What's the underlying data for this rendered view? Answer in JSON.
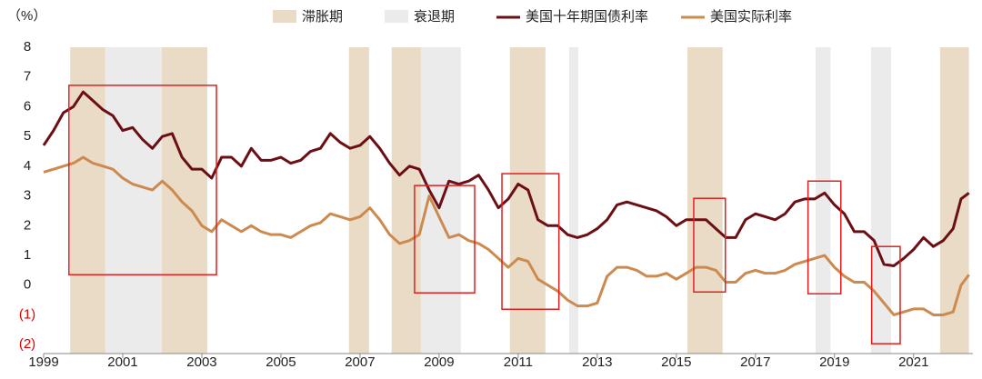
{
  "chart_data": {
    "type": "line",
    "y_unit_label": "（%）",
    "x": [
      1999,
      1999.25,
      1999.5,
      1999.75,
      2000,
      2000.25,
      2000.5,
      2000.75,
      2001,
      2001.25,
      2001.5,
      2001.75,
      2002,
      2002.25,
      2002.5,
      2002.75,
      2003,
      2003.25,
      2003.5,
      2003.75,
      2004,
      2004.25,
      2004.5,
      2004.75,
      2005,
      2005.25,
      2005.5,
      2005.75,
      2006,
      2006.25,
      2006.5,
      2006.75,
      2007,
      2007.25,
      2007.5,
      2007.75,
      2008,
      2008.25,
      2008.5,
      2008.75,
      2009,
      2009.25,
      2009.5,
      2009.75,
      2010,
      2010.25,
      2010.5,
      2010.75,
      2011,
      2011.25,
      2011.5,
      2011.75,
      2012,
      2012.25,
      2012.5,
      2012.75,
      2013,
      2013.25,
      2013.5,
      2013.75,
      2014,
      2014.25,
      2014.5,
      2014.75,
      2015,
      2015.25,
      2015.5,
      2015.75,
      2016,
      2016.25,
      2016.5,
      2016.75,
      2017,
      2017.25,
      2017.5,
      2017.75,
      2018,
      2018.25,
      2018.5,
      2018.75,
      2019,
      2019.25,
      2019.5,
      2019.75,
      2020,
      2020.25,
      2020.5,
      2020.75,
      2021,
      2021.25,
      2021.5,
      2021.75,
      2022,
      2022.2,
      2022.4
    ],
    "series": [
      {
        "name": "美国十年期国债利率",
        "color": "#6b0f14",
        "values": [
          4.7,
          5.2,
          5.8,
          6.0,
          6.5,
          6.2,
          5.9,
          5.7,
          5.2,
          5.3,
          4.9,
          4.6,
          5.0,
          5.1,
          4.3,
          3.9,
          3.9,
          3.6,
          4.3,
          4.3,
          4.0,
          4.6,
          4.2,
          4.2,
          4.3,
          4.1,
          4.2,
          4.5,
          4.6,
          5.1,
          4.8,
          4.6,
          4.7,
          5.0,
          4.6,
          4.1,
          3.7,
          4.0,
          3.9,
          3.2,
          2.6,
          3.5,
          3.4,
          3.5,
          3.7,
          3.2,
          2.6,
          2.9,
          3.4,
          3.2,
          2.2,
          2.0,
          2.0,
          1.7,
          1.6,
          1.7,
          1.9,
          2.2,
          2.7,
          2.8,
          2.7,
          2.6,
          2.5,
          2.3,
          2.0,
          2.2,
          2.2,
          2.2,
          1.9,
          1.6,
          1.6,
          2.2,
          2.4,
          2.3,
          2.2,
          2.4,
          2.8,
          2.9,
          2.9,
          3.1,
          2.7,
          2.4,
          1.8,
          1.8,
          1.5,
          0.7,
          0.65,
          0.9,
          1.2,
          1.6,
          1.3,
          1.5,
          1.9,
          2.9,
          3.1
        ]
      },
      {
        "name": "美国实际利率",
        "color": "#cd8a4f",
        "values": [
          3.8,
          3.9,
          4.0,
          4.1,
          4.3,
          4.1,
          4.0,
          3.9,
          3.6,
          3.4,
          3.3,
          3.2,
          3.5,
          3.2,
          2.8,
          2.5,
          2.0,
          1.8,
          2.2,
          2.0,
          1.8,
          2.0,
          1.8,
          1.7,
          1.7,
          1.6,
          1.8,
          2.0,
          2.1,
          2.4,
          2.3,
          2.2,
          2.3,
          2.6,
          2.2,
          1.7,
          1.4,
          1.5,
          1.7,
          3.0,
          2.3,
          1.6,
          1.7,
          1.5,
          1.4,
          1.2,
          0.9,
          0.6,
          0.9,
          0.8,
          0.2,
          0.0,
          -0.2,
          -0.5,
          -0.7,
          -0.7,
          -0.6,
          0.3,
          0.6,
          0.6,
          0.5,
          0.3,
          0.3,
          0.4,
          0.2,
          0.4,
          0.6,
          0.6,
          0.5,
          0.1,
          0.1,
          0.4,
          0.5,
          0.4,
          0.4,
          0.5,
          0.7,
          0.8,
          0.9,
          1.0,
          0.6,
          0.3,
          0.1,
          0.1,
          -0.2,
          -0.6,
          -1.0,
          -0.9,
          -0.8,
          -0.8,
          -1.0,
          -1.0,
          -0.9,
          0.0,
          0.35
        ]
      }
    ],
    "shaded_periods": [
      {
        "name": "滞胀期",
        "color": "#eadbc6",
        "ranges": [
          [
            1999.67,
            2000.56
          ],
          [
            2001.99,
            2003.14
          ],
          [
            2006.72,
            2007.23
          ],
          [
            2007.8,
            2008.54
          ],
          [
            2010.79,
            2011.69
          ],
          [
            2015.28,
            2016.17
          ],
          [
            2021.67,
            2022.4
          ]
        ]
      },
      {
        "name": "衰退期",
        "color": "#ebebeb",
        "ranges": [
          [
            2000.56,
            2001.99
          ],
          [
            2008.54,
            2009.55
          ],
          [
            2012.29,
            2012.52
          ],
          [
            2018.52,
            2018.9
          ],
          [
            2019.92,
            2020.43
          ]
        ]
      }
    ],
    "highlight_boxes": [
      {
        "x": [
          1999.64,
          2003.37
        ],
        "y": [
          0.35,
          6.72
        ]
      },
      {
        "x": [
          2008.38,
          2009.9
        ],
        "y": [
          -0.26,
          3.35
        ]
      },
      {
        "x": [
          2010.59,
          2012.03
        ],
        "y": [
          -0.81,
          3.75
        ]
      },
      {
        "x": [
          2015.44,
          2016.24
        ],
        "y": [
          -0.23,
          2.92
        ]
      },
      {
        "x": [
          2018.33,
          2019.16
        ],
        "y": [
          -0.29,
          3.5
        ]
      },
      {
        "x": [
          2019.94,
          2020.66
        ],
        "y": [
          -1.97,
          1.3
        ]
      }
    ],
    "highlight_color": "#e02020",
    "negative_tick_color": "#e00000",
    "xlim": [
      1999,
      2022.5
    ],
    "xticks": [
      1999,
      2001,
      2003,
      2005,
      2007,
      2009,
      2011,
      2013,
      2015,
      2017,
      2019,
      2021
    ],
    "ylim": [
      -2.3,
      8
    ],
    "yticks": [
      {
        "value": -2,
        "label": "(2)"
      },
      {
        "value": -1,
        "label": "(1)"
      },
      0,
      1,
      2,
      3,
      4,
      5,
      6,
      7,
      8
    ],
    "grid": false
  }
}
